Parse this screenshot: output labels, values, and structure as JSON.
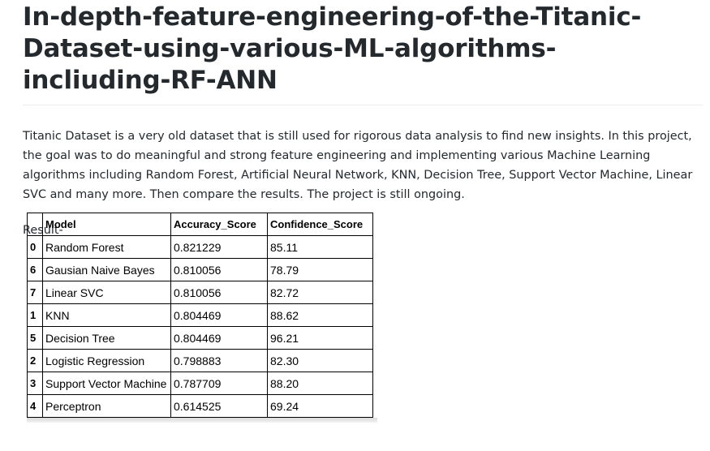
{
  "title": "In-depth-feature-engineering-of-the-Titanic-Dataset-using-various-ML-algorithms-incliuding-RF-ANN",
  "description": "Titanic Dataset is a very old dataset that is still used for rigorous data analysis to find new insights. In this project, the goal was to do meaningful and strong feature engineering and implementing various Machine Learning algorithms including Random Forest, Artificial Neural Network, KNN, Decision Tree, Support Vector Machine, Linear SVC and many more. Then compare the results. The project is still ongoing.",
  "result_label": "Result-",
  "table": {
    "columns": [
      "",
      "Model",
      "Accuracy_Score",
      "Confidence_Score"
    ],
    "rows": [
      {
        "index": "0",
        "model": "Random Forest",
        "accuracy": "0.821229",
        "confidence": "85.11"
      },
      {
        "index": "6",
        "model": "Gausian Naive Bayes",
        "accuracy": "0.810056",
        "confidence": "78.79"
      },
      {
        "index": "7",
        "model": "Linear SVC",
        "accuracy": "0.810056",
        "confidence": "82.72"
      },
      {
        "index": "1",
        "model": "KNN",
        "accuracy": "0.804469",
        "confidence": "88.62"
      },
      {
        "index": "5",
        "model": "Decision Tree",
        "accuracy": "0.804469",
        "confidence": "96.21"
      },
      {
        "index": "2",
        "model": "Logistic Regression",
        "accuracy": "0.798883",
        "confidence": "82.30"
      },
      {
        "index": "3",
        "model": "Support Vector Machine",
        "accuracy": "0.787709",
        "confidence": "88.20"
      },
      {
        "index": "4",
        "model": "Perceptron",
        "accuracy": "0.614525",
        "confidence": "69.24"
      }
    ]
  }
}
